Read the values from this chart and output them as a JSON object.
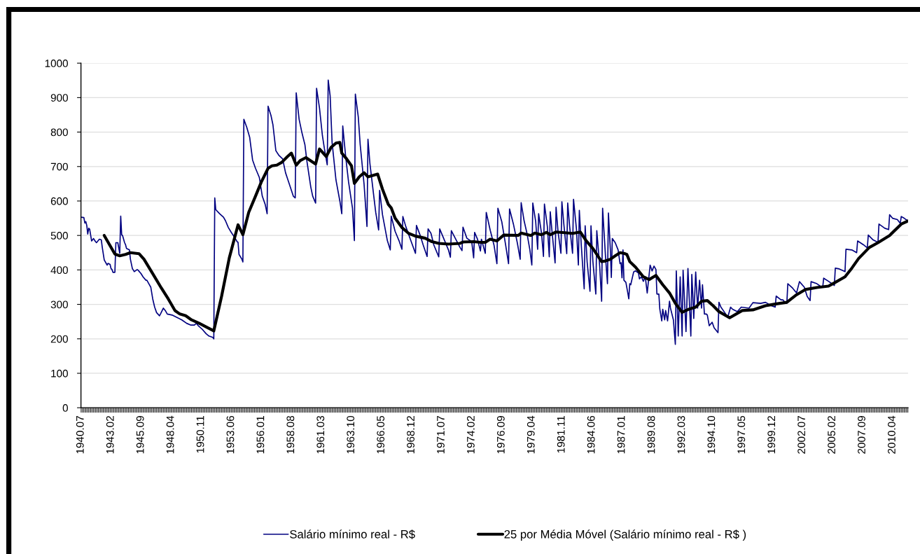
{
  "chart_data": {
    "type": "line",
    "xlim": [
      "1940-07",
      "2011-08"
    ],
    "xticks": [
      {
        "value": "1940-07",
        "label": "1940.07"
      },
      {
        "value": "1943-02",
        "label": "1943.02"
      },
      {
        "value": "1945-09",
        "label": "1945.09"
      },
      {
        "value": "1948-04",
        "label": "1948.04"
      },
      {
        "value": "1950-11",
        "label": "1950.11"
      },
      {
        "value": "1953-06",
        "label": "1953.06"
      },
      {
        "value": "1956-01",
        "label": "1956.01"
      },
      {
        "value": "1958-08",
        "label": "1958.08"
      },
      {
        "value": "1961-03",
        "label": "1961.03"
      },
      {
        "value": "1963-10",
        "label": "1963.10"
      },
      {
        "value": "1966-05",
        "label": "1966.05"
      },
      {
        "value": "1968-12",
        "label": "1968.12"
      },
      {
        "value": "1971-07",
        "label": "1971.07"
      },
      {
        "value": "1974-02",
        "label": "1974.02"
      },
      {
        "value": "1976-09",
        "label": "1976.09"
      },
      {
        "value": "1979-04",
        "label": "1979.04"
      },
      {
        "value": "1981-11",
        "label": "1981.11"
      },
      {
        "value": "1984-06",
        "label": "1984.06"
      },
      {
        "value": "1987-01",
        "label": "1987.01"
      },
      {
        "value": "1989-08",
        "label": "1989.08"
      },
      {
        "value": "1992-03",
        "label": "1992.03"
      },
      {
        "value": "1994-10",
        "label": "1994.10"
      },
      {
        "value": "1997-05",
        "label": "1997.05"
      },
      {
        "value": "1999-12",
        "label": "1999.12"
      },
      {
        "value": "2002-07",
        "label": "2002.07"
      },
      {
        "value": "2005-02",
        "label": "2005.02"
      },
      {
        "value": "2007-09",
        "label": "2007.09"
      },
      {
        "value": "2010-04",
        "label": "2010.04"
      }
    ],
    "ylim": [
      0,
      1000
    ],
    "yticks": [
      0,
      100,
      200,
      300,
      400,
      500,
      600,
      700,
      800,
      900,
      1000
    ],
    "grid": "y",
    "legend": "bottom",
    "series": [
      {
        "name": "Salário mínimo real - R$",
        "color": "#000080",
        "x": [
          "1940-07",
          "1940-10",
          "1940-11",
          "1940-12",
          "1941-01",
          "1941-02",
          "1941-03",
          "1941-04",
          "1941-06",
          "1941-08",
          "1941-10",
          "1941-11",
          "1942-02",
          "1942-04",
          "1942-05",
          "1942-07",
          "1942-10",
          "1942-11",
          "1943-01",
          "1943-02",
          "1943-03",
          "1943-04",
          "1943-06",
          "1943-07",
          "1943-09",
          "1943-11",
          "1943-12",
          "1944-01",
          "1944-02",
          "1944-04",
          "1944-05",
          "1944-06",
          "1944-09",
          "1944-10",
          "1944-12",
          "1945-02",
          "1945-03",
          "1945-05",
          "1945-06",
          "1945-09",
          "1945-11",
          "1946-02",
          "1946-03",
          "1946-05",
          "1946-07",
          "1946-09",
          "1946-11",
          "1947-01",
          "1947-04",
          "1947-05",
          "1947-08",
          "1947-10",
          "1947-12",
          "1948-05",
          "1948-10",
          "1949-03",
          "1949-08",
          "1949-12",
          "1950-04",
          "1950-06",
          "1950-08",
          "1950-12",
          "1951-04",
          "1951-07",
          "1951-11",
          "1951-12",
          "1952-01",
          "1952-02",
          "1952-06",
          "1952-10",
          "1952-12",
          "1953-03",
          "1953-06",
          "1953-10",
          "1953-12",
          "1954-01",
          "1954-02",
          "1954-05",
          "1954-06",
          "1954-07",
          "1954-10",
          "1955-01",
          "1955-04",
          "1955-07",
          "1955-11",
          "1956-02",
          "1956-05",
          "1956-07",
          "1956-08",
          "1956-11",
          "1957-01",
          "1957-04",
          "1957-07",
          "1957-11",
          "1958-02",
          "1958-06",
          "1958-10",
          "1958-12",
          "1959-01",
          "1959-04",
          "1959-07",
          "1959-10",
          "1959-12",
          "1960-04",
          "1960-06",
          "1960-09",
          "1960-10",
          "1961-01",
          "1961-04",
          "1961-06",
          "1961-09",
          "1961-10",
          "1961-12",
          "1962-02",
          "1962-06",
          "1962-10",
          "1962-12",
          "1963-01",
          "1963-04",
          "1963-07",
          "1963-11",
          "1964-01",
          "1964-02",
          "1964-05",
          "1964-07",
          "1964-11",
          "1965-02",
          "1965-03",
          "1965-05",
          "1965-09",
          "1965-11",
          "1966-02",
          "1966-03",
          "1966-06",
          "1966-11",
          "1967-02",
          "1967-03",
          "1967-07",
          "1967-11",
          "1968-02",
          "1968-03",
          "1968-06",
          "1968-12",
          "1969-04",
          "1969-05",
          "1969-09",
          "1969-12",
          "1970-04",
          "1970-05",
          "1970-08",
          "1970-11",
          "1971-04",
          "1971-05",
          "1971-09",
          "1972-02",
          "1972-04",
          "1972-05",
          "1972-09",
          "1973-02",
          "1973-04",
          "1973-05",
          "1973-09",
          "1974-02",
          "1974-04",
          "1974-05",
          "1974-08",
          "1974-11",
          "1974-12",
          "1975-04",
          "1975-05",
          "1975-09",
          "1976-01",
          "1976-04",
          "1976-05",
          "1976-09",
          "1977-01",
          "1977-04",
          "1977-05",
          "1977-09",
          "1978-01",
          "1978-04",
          "1978-05",
          "1978-08",
          "1978-11",
          "1979-02",
          "1979-04",
          "1979-05",
          "1979-08",
          "1979-10",
          "1979-11",
          "1980-02",
          "1980-04",
          "1980-05",
          "1980-08",
          "1980-10",
          "1980-11",
          "1981-01",
          "1981-04",
          "1981-05",
          "1981-07",
          "1981-10",
          "1981-11",
          "1982-01",
          "1982-04",
          "1982-05",
          "1982-07",
          "1982-10",
          "1982-11",
          "1983-02",
          "1983-04",
          "1983-05",
          "1983-07",
          "1983-10",
          "1983-11",
          "1984-01",
          "1984-04",
          "1984-05",
          "1984-07",
          "1984-10",
          "1984-11",
          "1985-02",
          "1985-04",
          "1985-05",
          "1985-08",
          "1985-10",
          "1985-11",
          "1986-01",
          "1986-02",
          "1986-03",
          "1986-06",
          "1986-09",
          "1986-11",
          "1986-12",
          "1987-01",
          "1987-02",
          "1987-03",
          "1987-05",
          "1987-07",
          "1987-08",
          "1987-09",
          "1987-10",
          "1988-01",
          "1988-03",
          "1988-06",
          "1988-07",
          "1988-09",
          "1988-11",
          "1989-01",
          "1989-03",
          "1989-06",
          "1989-08",
          "1989-10",
          "1989-12",
          "1990-01",
          "1990-03",
          "1990-04",
          "1990-06",
          "1990-07",
          "1990-09",
          "1990-10",
          "1990-12",
          "1991-02",
          "1991-03",
          "1991-06",
          "1991-08",
          "1991-09",
          "1991-11",
          "1992-01",
          "1992-03",
          "1992-04",
          "1992-07",
          "1992-09",
          "1992-12",
          "1993-01",
          "1993-02",
          "1993-03",
          "1993-05",
          "1993-07",
          "1993-09",
          "1993-11",
          "1993-12",
          "1994-02",
          "1994-04",
          "1994-05",
          "1994-07",
          "1994-10",
          "1994-12",
          "1995-04",
          "1995-05",
          "1995-07",
          "1995-11",
          "1996-02",
          "1996-05",
          "1996-07",
          "1996-12",
          "1997-04",
          "1997-12",
          "1998-04",
          "1998-12",
          "1999-05",
          "1999-11",
          "2000-03",
          "2000-04",
          "2000-09",
          "2000-11",
          "2001-01",
          "2001-03",
          "2001-04",
          "2001-09",
          "2002-01",
          "2002-04",
          "2002-09",
          "2002-12",
          "2003-03",
          "2003-04",
          "2003-10",
          "2004-03",
          "2004-04",
          "2004-05",
          "2004-10",
          "2005-03",
          "2005-04",
          "2005-05",
          "2005-09",
          "2006-03",
          "2006-04",
          "2006-10",
          "2007-03",
          "2007-04",
          "2007-10",
          "2008-02",
          "2008-03",
          "2008-08",
          "2009-01",
          "2009-02",
          "2009-08",
          "2009-12",
          "2010-01",
          "2010-04",
          "2010-09",
          "2010-12",
          "2011-01",
          "2011-04",
          "2011-08"
        ],
        "values": [
          553,
          552,
          536,
          540,
          529,
          504,
          521,
          518,
          484,
          491,
          482,
          479,
          489,
          487,
          465,
          429,
          414,
          419,
          416,
          404,
          401,
          393,
          393,
          479,
          479,
          448,
          556,
          502,
          499,
          479,
          473,
          462,
          458,
          431,
          404,
          395,
          397,
          401,
          399,
          389,
          380,
          370,
          370,
          360,
          350,
          316,
          292,
          276,
          267,
          272,
          289,
          282,
          272,
          269,
          262,
          255,
          245,
          240,
          240,
          245,
          238,
          228,
          215,
          208,
          204,
          200,
          609,
          575,
          563,
          553,
          543,
          523,
          509,
          492,
          482,
          480,
          445,
          431,
          423,
          837,
          814,
          785,
          719,
          695,
          668,
          614,
          590,
          563,
          875,
          848,
          821,
          746,
          733,
          722,
          682,
          648,
          614,
          609,
          914,
          837,
          797,
          763,
          716,
          641,
          614,
          594,
          927,
          870,
          790,
          753,
          705,
          951,
          905,
          770,
          661,
          600,
          563,
          818,
          729,
          655,
          580,
          485,
          910,
          844,
          763,
          648,
          526,
          779,
          709,
          614,
          567,
          516,
          631,
          560,
          485,
          458,
          556,
          512,
          485,
          460,
          555,
          526,
          479,
          448,
          529,
          499,
          472,
          439,
          519,
          506,
          472,
          438,
          519,
          492,
          458,
          437,
          514,
          492,
          465,
          456,
          524,
          492,
          482,
          435,
          509,
          489,
          455,
          489,
          448,
          567,
          516,
          472,
          418,
          579,
          540,
          472,
          418,
          577,
          533,
          479,
          431,
          595,
          543,
          506,
          458,
          414,
          594,
          540,
          460,
          563,
          506,
          439,
          591,
          526,
          438,
          569,
          506,
          420,
          582,
          512,
          448,
          598,
          533,
          447,
          594,
          526,
          448,
          605,
          519,
          414,
          573,
          472,
          345,
          528,
          424,
          338,
          528,
          424,
          330,
          514,
          411,
          309,
          579,
          438,
          360,
          565,
          458,
          378,
          491,
          479,
          458,
          418,
          421,
          377,
          458,
          370,
          364,
          333,
          316,
          360,
          357,
          394,
          397,
          391,
          374,
          380,
          367,
          380,
          333,
          414,
          397,
          411,
          401,
          330,
          330,
          286,
          252,
          286,
          255,
          282,
          252,
          309,
          289,
          255,
          184,
          397,
          208,
          380,
          208,
          399,
          221,
          404,
          208,
          387,
          330,
          259,
          394,
          289,
          370,
          289,
          357,
          272,
          272,
          269,
          238,
          248,
          232,
          218,
          306,
          292,
          276,
          262,
          292,
          286,
          279,
          292,
          289,
          305,
          303,
          306,
          296,
          292,
          324,
          313,
          313,
          306,
          303,
          360,
          347,
          333,
          366,
          350,
          323,
          311,
          366,
          360,
          350,
          350,
          376,
          367,
          357,
          355,
          405,
          403,
          395,
          460,
          458,
          450,
          484,
          473,
          464,
          501,
          487,
          480,
          533,
          521,
          517,
          560,
          550,
          546,
          535,
          555,
          550,
          542
        ]
      },
      {
        "name": "25 por Média Móvel (Salário mínimo real - R$ )",
        "color": "#000000",
        "x": [
          "1942-07",
          "1943-06",
          "1943-11",
          "1944-05",
          "1944-10",
          "1945-07",
          "1945-12",
          "1946-08",
          "1947-06",
          "1948-01",
          "1948-08",
          "1949-01",
          "1949-07",
          "1950-01",
          "1950-09",
          "1951-06",
          "1951-12",
          "1952-08",
          "1953-04",
          "1954-01",
          "1954-06",
          "1954-12",
          "1955-07",
          "1956-01",
          "1956-08",
          "1956-12",
          "1957-05",
          "1957-10",
          "1958-04",
          "1958-08",
          "1959-01",
          "1959-05",
          "1959-11",
          "1960-09",
          "1961-01",
          "1961-08",
          "1962-01",
          "1962-06",
          "1962-10",
          "1962-12",
          "1963-05",
          "1963-10",
          "1964-01",
          "1964-06",
          "1964-11",
          "1965-03",
          "1966-01",
          "1966-06",
          "1966-12",
          "1967-03",
          "1967-07",
          "1968-02",
          "1968-09",
          "1969-04",
          "1970-02",
          "1970-09",
          "1971-04",
          "1972-02",
          "1973-02",
          "1973-05",
          "1974-04",
          "1974-11",
          "1975-04",
          "1975-09",
          "1976-04",
          "1976-11",
          "1978-02",
          "1978-05",
          "1979-03",
          "1979-07",
          "1980-02",
          "1980-07",
          "1980-11",
          "1981-05",
          "1982-02",
          "1982-10",
          "1983-06",
          "1983-12",
          "1984-07",
          "1985-04",
          "1985-08",
          "1986-01",
          "1986-06",
          "1986-11",
          "1987-03",
          "1987-06",
          "1987-09",
          "1988-03",
          "1988-11",
          "1989-05",
          "1989-12",
          "1990-07",
          "1991-02",
          "1991-08",
          "1992-03",
          "1992-10",
          "1993-05",
          "1993-11",
          "1994-05",
          "1994-11",
          "1995-05",
          "1996-04",
          "1997-05",
          "1998-04",
          "1999-05",
          "2000-03",
          "2001-03",
          "2001-12",
          "2002-10",
          "2003-10",
          "2004-10",
          "2005-05",
          "2006-03",
          "2006-10",
          "2007-05",
          "2008-04",
          "2009-01",
          "2010-01",
          "2011-01",
          "2011-08"
        ],
        "values": [
          500,
          446,
          441,
          445,
          450,
          447,
          431,
          394,
          347,
          316,
          282,
          272,
          267,
          255,
          245,
          232,
          223,
          323,
          435,
          531,
          502,
          567,
          614,
          655,
          695,
          702,
          704,
          712,
          729,
          739,
          704,
          717,
          726,
          707,
          751,
          729,
          756,
          768,
          770,
          739,
          722,
          702,
          651,
          670,
          682,
          670,
          678,
          634,
          590,
          580,
          550,
          523,
          506,
          498,
          492,
          482,
          477,
          475,
          477,
          481,
          482,
          480,
          480,
          489,
          484,
          501,
          500,
          507,
          500,
          507,
          502,
          509,
          502,
          510,
          508,
          506,
          510,
          485,
          462,
          424,
          426,
          431,
          441,
          450,
          448,
          445,
          424,
          408,
          380,
          372,
          384,
          357,
          333,
          303,
          277,
          286,
          292,
          309,
          311,
          296,
          279,
          261,
          282,
          284,
          296,
          301,
          306,
          326,
          343,
          349,
          353,
          364,
          380,
          405,
          433,
          465,
          479,
          500,
          533,
          542
        ]
      }
    ]
  }
}
